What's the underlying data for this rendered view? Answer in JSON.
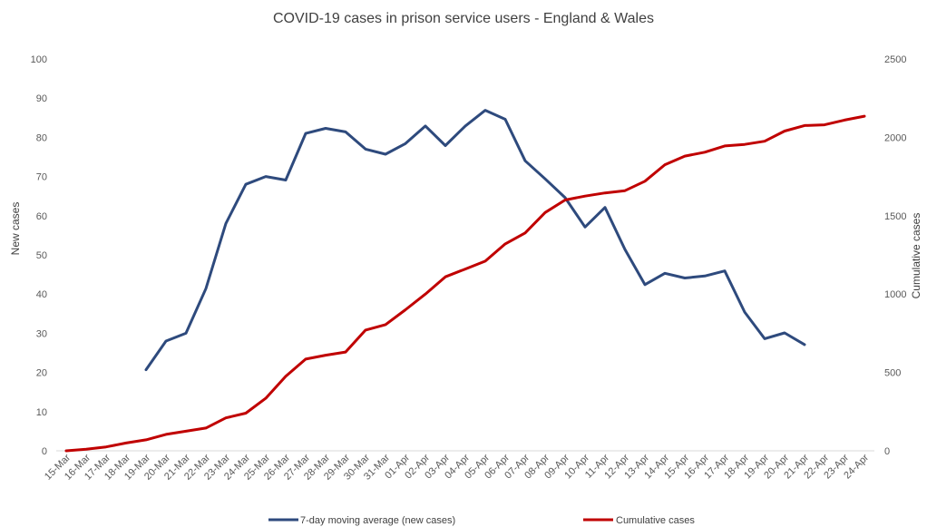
{
  "chart_data": {
    "type": "line",
    "title": "COVID-19 cases in prison service users - England & Wales",
    "ylabel": "New cases",
    "y2label": "Cumulative cases",
    "ylim": [
      0,
      100
    ],
    "y2lim": [
      0,
      2500
    ],
    "yticks": [
      "0",
      "10",
      "20",
      "30",
      "40",
      "50",
      "60",
      "70",
      "80",
      "90",
      "100"
    ],
    "y2ticks": [
      "0",
      "500",
      "1000",
      "1500",
      "2000",
      "2500"
    ],
    "grid": false,
    "legend_position": "bottom",
    "categories": [
      "15-Mar",
      "16-Mar",
      "17-Mar",
      "18-Mar",
      "19-Mar",
      "20-Mar",
      "21-Mar",
      "22-Mar",
      "23-Mar",
      "24-Mar",
      "25-Mar",
      "26-Mar",
      "27-Mar",
      "28-Mar",
      "29-Mar",
      "30-Mar",
      "31-Mar",
      "01-Apr",
      "02-Apr",
      "03-Apr",
      "04-Apr",
      "05-Apr",
      "06-Apr",
      "07-Apr",
      "08-Apr",
      "09-Apr",
      "10-Apr",
      "11-Apr",
      "12-Apr",
      "13-Apr",
      "14-Apr",
      "15-Apr",
      "16-Apr",
      "17-Apr",
      "18-Apr",
      "19-Apr",
      "20-Apr",
      "21-Apr",
      "22-Apr",
      "23-Apr",
      "24-Apr"
    ],
    "series": [
      {
        "name": "7-day moving average (new cases)",
        "axis": "left",
        "color": "#2E4A7D",
        "values": [
          null,
          null,
          null,
          null,
          20.7,
          28,
          30,
          41.4,
          58,
          68,
          70,
          69.1,
          81,
          82.3,
          81.4,
          77,
          75.7,
          78.4,
          82.9,
          77.9,
          82.9,
          86.9,
          84.6,
          74,
          69.4,
          64.6,
          57.1,
          62.1,
          51.4,
          42.4,
          45.3,
          44.1,
          44.6,
          45.9,
          35.4,
          28.6,
          30.1,
          27.1,
          null,
          null,
          null
        ]
      },
      {
        "name": "Cumulative cases",
        "axis": "right",
        "color": "#C00000",
        "values": [
          0,
          10,
          25,
          50,
          70,
          105,
          125,
          145,
          210,
          240,
          335,
          475,
          585,
          610,
          630,
          770,
          805,
          900,
          1000,
          1110,
          1160,
          1210,
          1320,
          1390,
          1520,
          1600,
          1625,
          1645,
          1660,
          1720,
          1825,
          1880,
          1905,
          1945,
          1955,
          1975,
          2040,
          2075,
          2080,
          2110,
          2135
        ]
      }
    ]
  },
  "colors": {
    "axis": "#D9D9D9",
    "text": "#595959"
  }
}
